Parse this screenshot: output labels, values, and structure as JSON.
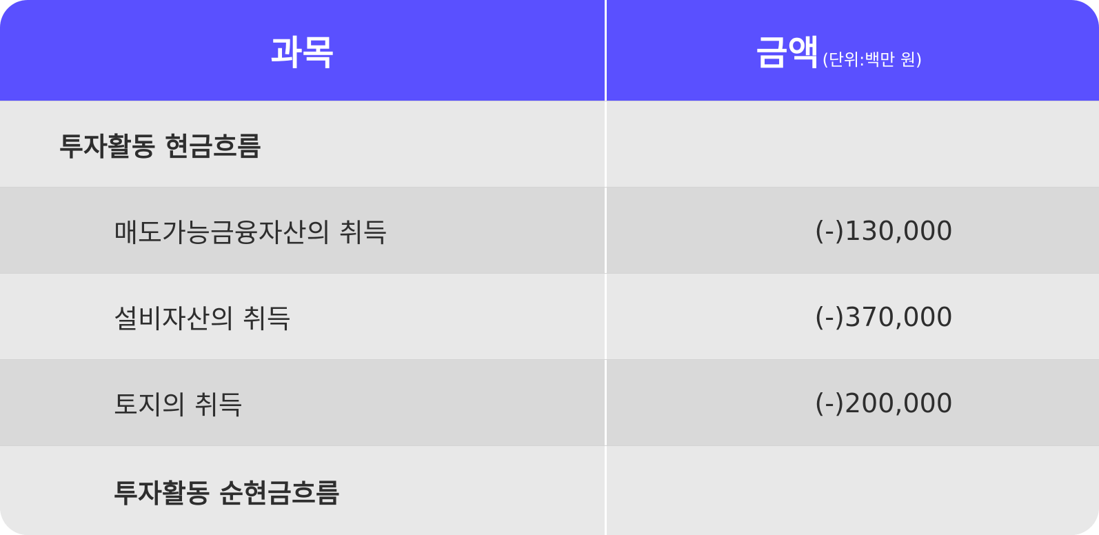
{
  "header": {
    "subject": "과목",
    "amount": "금액",
    "unit": "(단위:백만 원)"
  },
  "colors": {
    "header_bg": "#5a50ff",
    "row_light": "#e8e8e8",
    "row_dark": "#d9d9d9"
  },
  "rows": [
    {
      "label": "투자활동 현금흐름",
      "value": ""
    },
    {
      "label": "매도가능금융자산의 취득",
      "value": "(-)130,000"
    },
    {
      "label": "설비자산의 취득",
      "value": "(-)370,000"
    },
    {
      "label": "토지의 취득",
      "value": "(-)200,000"
    },
    {
      "label": "투자활동 순현금흐름",
      "value": ""
    }
  ]
}
